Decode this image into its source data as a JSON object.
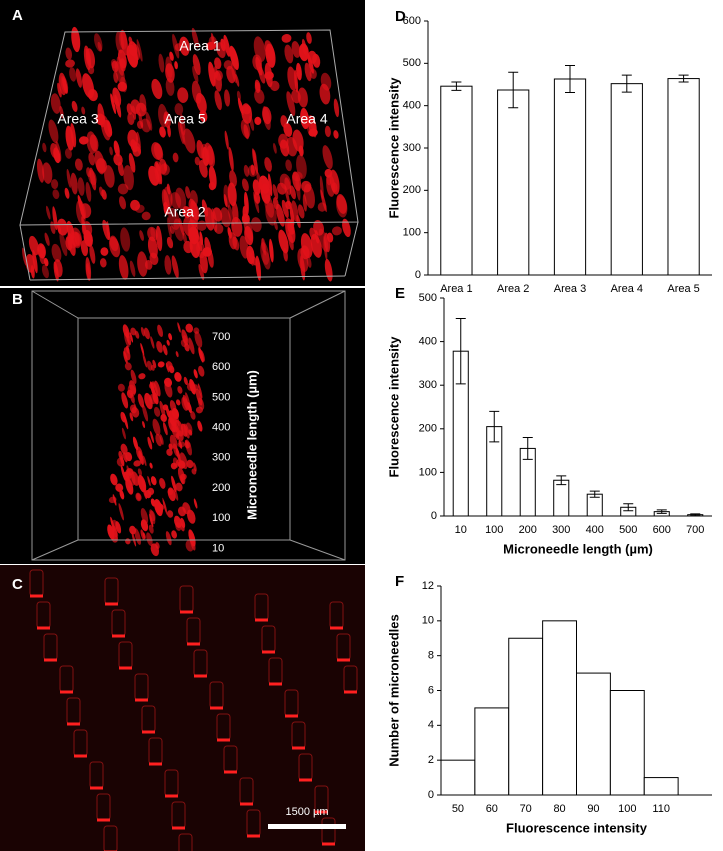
{
  "chart_data": [
    {
      "type": "bar",
      "panel": "D",
      "ylabel": "Fluorescence intensity",
      "categories": [
        "Area 1",
        "Area 2",
        "Area 3",
        "Area 4",
        "Area 5"
      ],
      "values": [
        446,
        437,
        463,
        452,
        464
      ],
      "errors": [
        10,
        42,
        32,
        20,
        8
      ],
      "ylim": [
        0,
        600
      ],
      "yticks": [
        0,
        100,
        200,
        300,
        400,
        500,
        600
      ],
      "color": "#ffffff"
    },
    {
      "type": "bar",
      "panel": "E",
      "xlabel": "Microneedle length (µm)",
      "ylabel": "Fluorescence intensity",
      "categories": [
        "10",
        "100",
        "200",
        "300",
        "400",
        "500",
        "600",
        "700"
      ],
      "values": [
        378,
        205,
        155,
        82,
        50,
        20,
        10,
        3
      ],
      "errors": [
        75,
        35,
        25,
        10,
        7,
        8,
        4,
        2
      ],
      "ylim": [
        0,
        500
      ],
      "yticks": [
        0,
        100,
        200,
        300,
        400,
        500
      ],
      "color": "#ffffff"
    },
    {
      "type": "histogram",
      "panel": "F",
      "xlabel": "Fluorescence intensity",
      "ylabel": "Number of microneedles",
      "categories": [
        "50",
        "60",
        "70",
        "80",
        "90",
        "100",
        "110"
      ],
      "values": [
        2,
        5,
        9,
        10,
        7,
        6,
        1
      ],
      "ylim": [
        0,
        12
      ],
      "yticks": [
        0,
        2,
        4,
        6,
        8,
        10,
        12
      ],
      "color": "#ffffff"
    }
  ],
  "images": [
    {
      "panel": "A",
      "labels": [
        "Area 1",
        "Area 3",
        "Area 5",
        "Area 4",
        "Area 2"
      ]
    },
    {
      "panel": "B",
      "axis_title": "Microneedle length (µm)",
      "ticks": [
        "700",
        "600",
        "500",
        "400",
        "300",
        "200",
        "100",
        "10"
      ]
    },
    {
      "panel": "C",
      "scale_bar": "1500 µm"
    }
  ]
}
